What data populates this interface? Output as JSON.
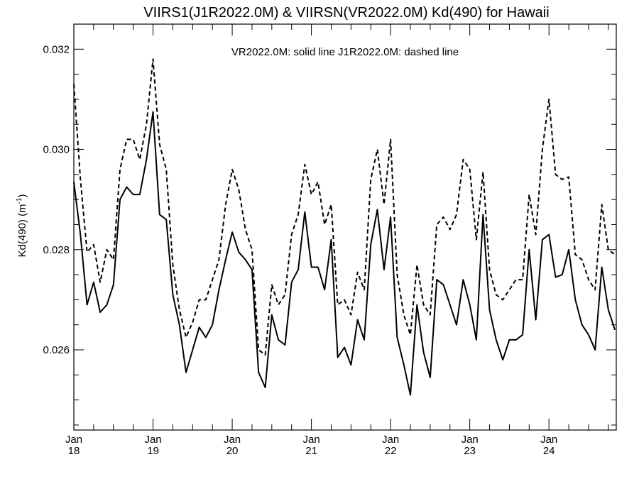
{
  "chart_data": {
    "type": "line",
    "title": "VIIRS1(J1R2022.0M) & VIIRSN(VR2022.0M)  Kd(490) for Hawaii",
    "annotation": "VR2022.0M: solid line   J1R2022.0M: dashed line",
    "ylabel": "Kd(490) (m",
    "ylabel_sup": "-1",
    "ylabel_close": ")",
    "ylim": [
      0.0244,
      0.0325
    ],
    "xlim": [
      2018.0,
      2024.85
    ],
    "y_ticks": [
      {
        "value": 0.026,
        "label": "0.026"
      },
      {
        "value": 0.028,
        "label": "0.028"
      },
      {
        "value": 0.03,
        "label": "0.030"
      },
      {
        "value": 0.032,
        "label": "0.032"
      }
    ],
    "x_ticks": [
      {
        "value": 2018,
        "month": "Jan",
        "year": "18"
      },
      {
        "value": 2019,
        "month": "Jan",
        "year": "19"
      },
      {
        "value": 2020,
        "month": "Jan",
        "year": "20"
      },
      {
        "value": 2021,
        "month": "Jan",
        "year": "21"
      },
      {
        "value": 2022,
        "month": "Jan",
        "year": "22"
      },
      {
        "value": 2023,
        "month": "Jan",
        "year": "23"
      },
      {
        "value": 2024,
        "month": "Jan",
        "year": "24"
      }
    ],
    "series": [
      {
        "name": "VR2022.0M",
        "style": "solid",
        "x": [
          2018.0,
          2018.083,
          2018.167,
          2018.25,
          2018.333,
          2018.417,
          2018.5,
          2018.583,
          2018.667,
          2018.75,
          2018.833,
          2018.917,
          2019.0,
          2019.083,
          2019.167,
          2019.25,
          2019.333,
          2019.417,
          2019.5,
          2019.583,
          2019.667,
          2019.75,
          2019.833,
          2019.917,
          2020.0,
          2020.083,
          2020.167,
          2020.25,
          2020.333,
          2020.417,
          2020.5,
          2020.583,
          2020.667,
          2020.75,
          2020.833,
          2020.917,
          2021.0,
          2021.083,
          2021.167,
          2021.25,
          2021.333,
          2021.417,
          2021.5,
          2021.583,
          2021.667,
          2021.75,
          2021.833,
          2021.917,
          2022.0,
          2022.083,
          2022.167,
          2022.25,
          2022.333,
          2022.417,
          2022.5,
          2022.583,
          2022.667,
          2022.75,
          2022.833,
          2022.917,
          2023.0,
          2023.083,
          2023.167,
          2023.25,
          2023.333,
          2023.417,
          2023.5,
          2023.583,
          2023.667,
          2023.75,
          2023.833,
          2023.917,
          2024.0,
          2024.083,
          2024.167,
          2024.25,
          2024.333,
          2024.417,
          2024.5,
          2024.583,
          2024.667,
          2024.75,
          2024.833
        ],
        "values": [
          0.02935,
          0.0283,
          0.0269,
          0.02735,
          0.02675,
          0.0269,
          0.0273,
          0.029,
          0.02925,
          0.0291,
          0.0291,
          0.0298,
          0.03075,
          0.0287,
          0.0286,
          0.0271,
          0.0265,
          0.02555,
          0.026,
          0.02645,
          0.02625,
          0.0265,
          0.0272,
          0.0278,
          0.02835,
          0.02795,
          0.0278,
          0.0276,
          0.02555,
          0.02525,
          0.0267,
          0.0262,
          0.0261,
          0.02735,
          0.0276,
          0.02875,
          0.02765,
          0.02765,
          0.0272,
          0.0282,
          0.02585,
          0.02605,
          0.0257,
          0.0266,
          0.0262,
          0.0281,
          0.0288,
          0.0276,
          0.02865,
          0.02625,
          0.0257,
          0.0251,
          0.0269,
          0.02595,
          0.02545,
          0.0274,
          0.0273,
          0.0269,
          0.0265,
          0.0274,
          0.0269,
          0.0262,
          0.0287,
          0.0268,
          0.0262,
          0.0258,
          0.0262,
          0.0262,
          0.0263,
          0.028,
          0.0266,
          0.0282,
          0.0283,
          0.02745,
          0.0275,
          0.028,
          0.027,
          0.0265,
          0.0263,
          0.026,
          0.02765,
          0.0268,
          0.0264
        ]
      },
      {
        "name": "J1R2022.0M",
        "style": "dashed",
        "x": [
          2018.0,
          2018.083,
          2018.167,
          2018.25,
          2018.333,
          2018.417,
          2018.5,
          2018.583,
          2018.667,
          2018.75,
          2018.833,
          2018.917,
          2019.0,
          2019.083,
          2019.167,
          2019.25,
          2019.333,
          2019.417,
          2019.5,
          2019.583,
          2019.667,
          2019.75,
          2019.833,
          2019.917,
          2020.0,
          2020.083,
          2020.167,
          2020.25,
          2020.333,
          2020.417,
          2020.5,
          2020.583,
          2020.667,
          2020.75,
          2020.833,
          2020.917,
          2021.0,
          2021.083,
          2021.167,
          2021.25,
          2021.333,
          2021.417,
          2021.5,
          2021.583,
          2021.667,
          2021.75,
          2021.833,
          2021.917,
          2022.0,
          2022.083,
          2022.167,
          2022.25,
          2022.333,
          2022.417,
          2022.5,
          2022.583,
          2022.667,
          2022.75,
          2022.833,
          2022.917,
          2023.0,
          2023.083,
          2023.167,
          2023.25,
          2023.333,
          2023.417,
          2023.5,
          2023.583,
          2023.667,
          2023.75,
          2023.833,
          2023.917,
          2024.0,
          2024.083,
          2024.167,
          2024.25,
          2024.333,
          2024.417,
          2024.5,
          2024.583,
          2024.667,
          2024.75,
          2024.833
        ],
        "values": [
          0.0313,
          0.0294,
          0.02795,
          0.0281,
          0.02735,
          0.028,
          0.0278,
          0.0296,
          0.0302,
          0.0302,
          0.0298,
          0.0305,
          0.0318,
          0.0301,
          0.0296,
          0.0277,
          0.0268,
          0.02625,
          0.02655,
          0.027,
          0.027,
          0.0274,
          0.0278,
          0.0289,
          0.0296,
          0.0292,
          0.0284,
          0.028,
          0.026,
          0.0259,
          0.0273,
          0.0269,
          0.0271,
          0.0283,
          0.0287,
          0.0297,
          0.0291,
          0.02935,
          0.0285,
          0.0289,
          0.0269,
          0.027,
          0.0267,
          0.02755,
          0.0272,
          0.0294,
          0.03,
          0.0289,
          0.0302,
          0.0275,
          0.0267,
          0.0263,
          0.0277,
          0.0269,
          0.0267,
          0.0285,
          0.02865,
          0.0284,
          0.0287,
          0.0298,
          0.0296,
          0.0282,
          0.02955,
          0.0276,
          0.0271,
          0.027,
          0.0272,
          0.0274,
          0.0274,
          0.0291,
          0.0283,
          0.03,
          0.031,
          0.0295,
          0.0294,
          0.02945,
          0.0279,
          0.0278,
          0.0274,
          0.0272,
          0.0289,
          0.028,
          0.0279
        ]
      }
    ],
    "grid": false,
    "legend": "annotation text at top-center"
  }
}
